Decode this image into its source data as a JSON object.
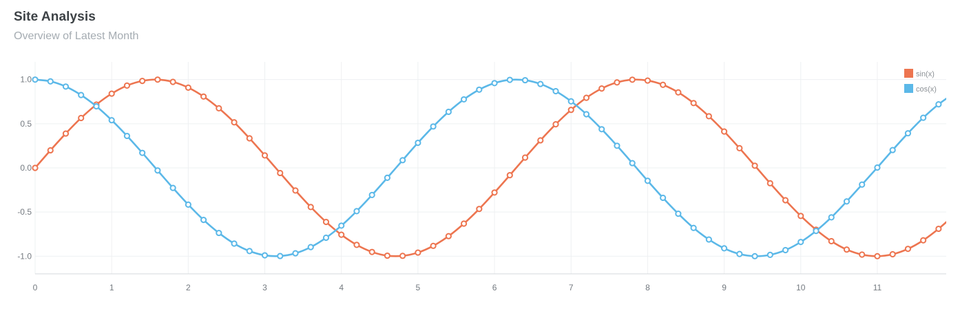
{
  "header": {
    "title": "Site Analysis",
    "subtitle": "Overview of Latest Month"
  },
  "chart_data": {
    "type": "line",
    "xlim": [
      0,
      11.9
    ],
    "ylim": [
      -1.2,
      1.2
    ],
    "x_ticks": [
      0,
      1,
      2,
      3,
      4,
      5,
      6,
      7,
      8,
      9,
      10,
      11
    ],
    "x_tick_labels": [
      "0",
      "1",
      "2",
      "3",
      "4",
      "5",
      "6",
      "7",
      "8",
      "9",
      "10",
      "11"
    ],
    "y_ticks": [
      1.0,
      0.5,
      0.0,
      -0.5,
      -1.0
    ],
    "y_tick_labels": [
      "1.0",
      "0.5",
      "0.0",
      "-0.5",
      "-1.0"
    ],
    "grid": true,
    "legend_position": "top-right",
    "x": [
      0.0,
      0.2,
      0.4,
      0.6,
      0.8,
      1.0,
      1.2,
      1.4,
      1.6,
      1.8,
      2.0,
      2.2,
      2.4,
      2.6,
      2.8,
      3.0,
      3.2,
      3.4,
      3.6,
      3.8,
      4.0,
      4.2,
      4.4,
      4.6,
      4.8,
      5.0,
      5.2,
      5.4,
      5.6,
      5.8,
      6.0,
      6.2,
      6.4,
      6.6,
      6.8,
      7.0,
      7.2,
      7.4,
      7.6,
      7.8,
      8.0,
      8.2,
      8.4,
      8.6,
      8.8,
      9.0,
      9.2,
      9.4,
      9.6,
      9.8,
      10.0,
      10.2,
      10.4,
      10.6,
      10.8,
      11.0,
      11.2,
      11.4,
      11.6,
      11.8,
      12.0
    ],
    "series": [
      {
        "name": "sin(x)",
        "color": "#ed7550",
        "values": [
          0.0,
          0.199,
          0.389,
          0.565,
          0.717,
          0.841,
          0.932,
          0.985,
          1.0,
          0.974,
          0.909,
          0.808,
          0.675,
          0.516,
          0.335,
          0.141,
          -0.058,
          -0.256,
          -0.443,
          -0.612,
          -0.757,
          -0.872,
          -0.952,
          -0.994,
          -0.996,
          -0.959,
          -0.883,
          -0.773,
          -0.631,
          -0.465,
          -0.279,
          -0.083,
          0.117,
          0.312,
          0.494,
          0.657,
          0.794,
          0.899,
          0.968,
          0.999,
          0.989,
          0.941,
          0.855,
          0.734,
          0.585,
          0.412,
          0.223,
          0.025,
          -0.174,
          -0.366,
          -0.544,
          -0.7,
          -0.83,
          -0.925,
          -0.982,
          -1.0,
          -0.978,
          -0.917,
          -0.82,
          -0.69,
          -0.537
        ]
      },
      {
        "name": "cos(x)",
        "color": "#5bb8e8",
        "values": [
          1.0,
          0.98,
          0.921,
          0.825,
          0.697,
          0.54,
          0.362,
          0.17,
          -0.029,
          -0.227,
          -0.416,
          -0.589,
          -0.737,
          -0.857,
          -0.942,
          -0.99,
          -0.998,
          -0.967,
          -0.897,
          -0.791,
          -0.654,
          -0.49,
          -0.307,
          -0.112,
          0.087,
          0.284,
          0.469,
          0.635,
          0.776,
          0.886,
          0.96,
          0.997,
          0.993,
          0.95,
          0.869,
          0.754,
          0.608,
          0.438,
          0.251,
          0.054,
          -0.146,
          -0.339,
          -0.519,
          -0.68,
          -0.811,
          -0.911,
          -0.975,
          -1.0,
          -0.985,
          -0.931,
          -0.839,
          -0.714,
          -0.56,
          -0.38,
          -0.189,
          0.004,
          0.202,
          0.392,
          0.568,
          0.72,
          0.844
        ]
      }
    ]
  }
}
